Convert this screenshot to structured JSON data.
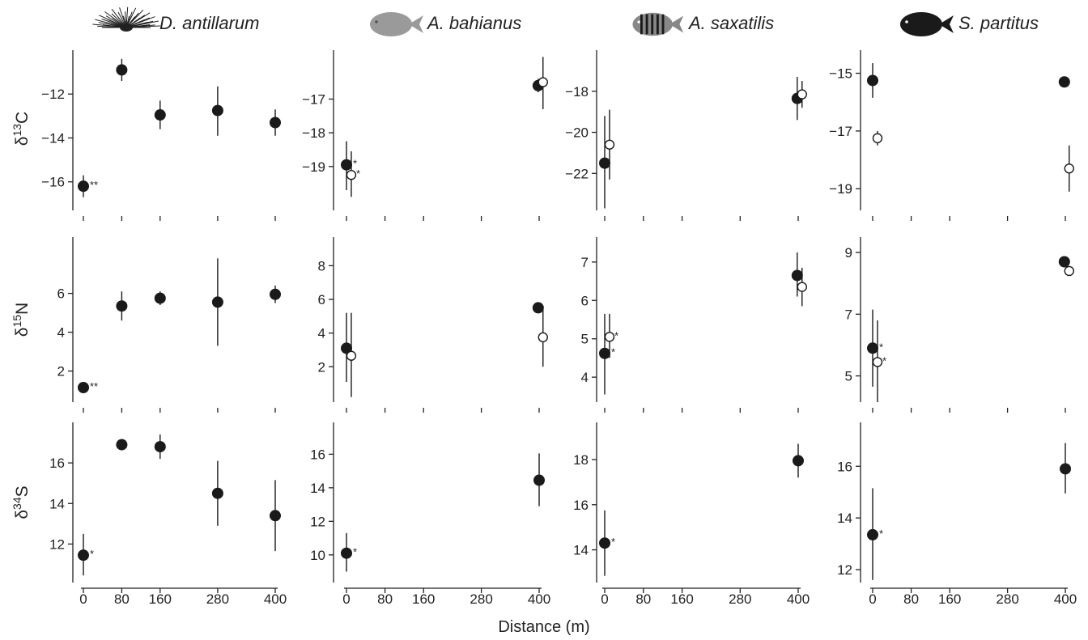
{
  "chart_data": {
    "type": "scatter",
    "x_axis": {
      "label": "Distance (m)",
      "ticks": [
        0,
        80,
        160,
        280,
        400
      ],
      "tick_labels": [
        "0",
        "80",
        "160",
        "280",
        "400"
      ]
    },
    "row_labels": [
      {
        "id": "d13c",
        "element": "δ",
        "mass": "13",
        "sym": "C"
      },
      {
        "id": "d15n",
        "element": "δ",
        "mass": "15",
        "sym": "N"
      },
      {
        "id": "d34s",
        "element": "δ",
        "mass": "34",
        "sym": "S"
      }
    ],
    "species": [
      {
        "name": "D. antillarum",
        "icon": "sea-urchin-icon",
        "icon_color": "#222222"
      },
      {
        "name": "A. bahianus",
        "icon": "surgeonfish-icon",
        "icon_color": "#9a9a9a"
      },
      {
        "name": "A. saxatilis",
        "icon": "sergeant-major-fish-icon",
        "icon_color": "#888888"
      },
      {
        "name": "S. partitus",
        "icon": "damselfish-icon",
        "icon_color": "#1a1a1a"
      }
    ],
    "marker_legend": {
      "filled": "#1a1a1a",
      "open": "#ffffff"
    },
    "panels": [
      {
        "row": 0,
        "col": 0,
        "ylim": [
          -17.3,
          -10.0
        ],
        "yticks": [
          -16,
          -14,
          -12
        ],
        "ytick_labels": [
          "−16",
          "−14",
          "−12"
        ],
        "points": [
          {
            "x": 0,
            "y": -16.2,
            "lo": -16.7,
            "hi": -15.7,
            "open": false,
            "sig": "**"
          },
          {
            "x": 80,
            "y": -10.9,
            "lo": -11.4,
            "hi": -10.4,
            "open": false,
            "sig": ""
          },
          {
            "x": 160,
            "y": -12.95,
            "lo": -13.6,
            "hi": -12.3,
            "open": false,
            "sig": ""
          },
          {
            "x": 280,
            "y": -12.75,
            "lo": -13.9,
            "hi": -11.65,
            "open": false,
            "sig": ""
          },
          {
            "x": 400,
            "y": -13.3,
            "lo": -13.9,
            "hi": -12.7,
            "open": false,
            "sig": ""
          }
        ]
      },
      {
        "row": 0,
        "col": 1,
        "ylim": [
          -20.3,
          -15.55
        ],
        "yticks": [
          -19,
          -18,
          -17
        ],
        "ytick_labels": [
          "−19",
          "−18",
          "−17"
        ],
        "points": [
          {
            "x": 0,
            "y": -18.95,
            "lo": -19.7,
            "hi": -18.25,
            "open": false,
            "sig": "*"
          },
          {
            "x": 10,
            "y": -19.25,
            "lo": -19.9,
            "hi": -18.55,
            "open": true,
            "sig": "*"
          },
          {
            "x": 398,
            "y": -16.6,
            "lo": -16.8,
            "hi": -16.4,
            "open": false,
            "sig": ""
          },
          {
            "x": 408,
            "y": -16.5,
            "lo": -17.3,
            "hi": -15.75,
            "open": true,
            "sig": ""
          }
        ]
      },
      {
        "row": 0,
        "col": 2,
        "ylim": [
          -23.8,
          -16.0
        ],
        "yticks": [
          -22,
          -20,
          -18
        ],
        "ytick_labels": [
          "−22",
          "−20",
          "−18"
        ],
        "points": [
          {
            "x": 0,
            "y": -21.5,
            "lo": -23.7,
            "hi": -19.2,
            "open": false,
            "sig": ""
          },
          {
            "x": 10,
            "y": -20.6,
            "lo": -22.3,
            "hi": -18.9,
            "open": true,
            "sig": ""
          },
          {
            "x": 398,
            "y": -18.35,
            "lo": -19.4,
            "hi": -17.3,
            "open": false,
            "sig": ""
          },
          {
            "x": 408,
            "y": -18.15,
            "lo": -18.8,
            "hi": -17.5,
            "open": true,
            "sig": ""
          }
        ]
      },
      {
        "row": 0,
        "col": 3,
        "ylim": [
          -19.75,
          -14.2
        ],
        "yticks": [
          -19,
          -17,
          -15
        ],
        "ytick_labels": [
          "−19",
          "−17",
          "−15"
        ],
        "points": [
          {
            "x": 0,
            "y": -15.25,
            "lo": -15.85,
            "hi": -14.65,
            "open": false,
            "sig": ""
          },
          {
            "x": 10,
            "y": -17.25,
            "lo": -17.5,
            "hi": -17.0,
            "open": true,
            "sig": ""
          },
          {
            "x": 398,
            "y": -15.3,
            "lo": -15.4,
            "hi": -15.2,
            "open": false,
            "sig": ""
          },
          {
            "x": 408,
            "y": -18.3,
            "lo": -19.1,
            "hi": -17.5,
            "open": true,
            "sig": ""
          }
        ]
      },
      {
        "row": 1,
        "col": 0,
        "ylim": [
          0.4,
          8.9
        ],
        "yticks": [
          2,
          4,
          6
        ],
        "ytick_labels": [
          "2",
          "4",
          "6"
        ],
        "points": [
          {
            "x": 0,
            "y": 1.15,
            "lo": 1.15,
            "hi": 1.15,
            "open": false,
            "sig": "**"
          },
          {
            "x": 80,
            "y": 5.35,
            "lo": 4.6,
            "hi": 6.1,
            "open": false,
            "sig": ""
          },
          {
            "x": 160,
            "y": 5.75,
            "lo": 5.4,
            "hi": 6.1,
            "open": false,
            "sig": ""
          },
          {
            "x": 280,
            "y": 5.55,
            "lo": 3.3,
            "hi": 7.8,
            "open": false,
            "sig": ""
          },
          {
            "x": 400,
            "y": 5.95,
            "lo": 5.5,
            "hi": 6.4,
            "open": false,
            "sig": ""
          }
        ]
      },
      {
        "row": 1,
        "col": 1,
        "ylim": [
          -0.1,
          9.7
        ],
        "yticks": [
          2,
          4,
          6,
          8
        ],
        "ytick_labels": [
          "2",
          "4",
          "6",
          "8"
        ],
        "points": [
          {
            "x": 0,
            "y": 3.1,
            "lo": 1.1,
            "hi": 5.2,
            "open": false,
            "sig": ""
          },
          {
            "x": 10,
            "y": 2.65,
            "lo": 0.2,
            "hi": 5.2,
            "open": true,
            "sig": ""
          },
          {
            "x": 398,
            "y": 5.5,
            "lo": 5.5,
            "hi": 5.5,
            "open": false,
            "sig": ""
          },
          {
            "x": 408,
            "y": 3.75,
            "lo": 2.0,
            "hi": 5.5,
            "open": true,
            "sig": ""
          }
        ]
      },
      {
        "row": 1,
        "col": 2,
        "ylim": [
          3.35,
          7.65
        ],
        "yticks": [
          4,
          5,
          6,
          7
        ],
        "ytick_labels": [
          "4",
          "5",
          "6",
          "7"
        ],
        "points": [
          {
            "x": 0,
            "y": 4.62,
            "lo": 3.55,
            "hi": 5.65,
            "open": false,
            "sig": "*"
          },
          {
            "x": 10,
            "y": 5.05,
            "lo": 4.5,
            "hi": 5.65,
            "open": true,
            "sig": "*"
          },
          {
            "x": 398,
            "y": 6.65,
            "lo": 6.1,
            "hi": 7.25,
            "open": false,
            "sig": ""
          },
          {
            "x": 408,
            "y": 6.35,
            "lo": 5.85,
            "hi": 6.85,
            "open": true,
            "sig": ""
          }
        ]
      },
      {
        "row": 1,
        "col": 3,
        "ylim": [
          4.15,
          9.5
        ],
        "yticks": [
          5,
          7,
          9
        ],
        "ytick_labels": [
          "5",
          "7",
          "9"
        ],
        "points": [
          {
            "x": 0,
            "y": 5.9,
            "lo": 4.65,
            "hi": 7.15,
            "open": false,
            "sig": "*"
          },
          {
            "x": 10,
            "y": 5.45,
            "lo": 4.15,
            "hi": 6.8,
            "open": true,
            "sig": "*"
          },
          {
            "x": 398,
            "y": 8.7,
            "lo": 8.7,
            "hi": 8.7,
            "open": false,
            "sig": ""
          },
          {
            "x": 408,
            "y": 8.4,
            "lo": 8.4,
            "hi": 8.4,
            "open": true,
            "sig": ""
          }
        ]
      },
      {
        "row": 2,
        "col": 0,
        "ylim": [
          10.1,
          18.0
        ],
        "yticks": [
          12,
          14,
          16
        ],
        "ytick_labels": [
          "12",
          "14",
          "16"
        ],
        "points": [
          {
            "x": 0,
            "y": 11.45,
            "lo": 10.45,
            "hi": 12.5,
            "open": false,
            "sig": "*"
          },
          {
            "x": 80,
            "y": 16.9,
            "lo": 16.9,
            "hi": 16.9,
            "open": false,
            "sig": ""
          },
          {
            "x": 160,
            "y": 16.8,
            "lo": 16.2,
            "hi": 17.4,
            "open": false,
            "sig": ""
          },
          {
            "x": 280,
            "y": 14.5,
            "lo": 12.9,
            "hi": 16.1,
            "open": false,
            "sig": ""
          },
          {
            "x": 400,
            "y": 13.4,
            "lo": 11.65,
            "hi": 15.15,
            "open": false,
            "sig": ""
          }
        ]
      },
      {
        "row": 2,
        "col": 1,
        "ylim": [
          8.35,
          17.9
        ],
        "yticks": [
          10,
          12,
          14,
          16
        ],
        "ytick_labels": [
          "10",
          "12",
          "14",
          "16"
        ],
        "points": [
          {
            "x": 0,
            "y": 10.1,
            "lo": 9.0,
            "hi": 11.3,
            "open": false,
            "sig": "*"
          },
          {
            "x": 400,
            "y": 14.45,
            "lo": 12.9,
            "hi": 16.05,
            "open": false,
            "sig": ""
          }
        ]
      },
      {
        "row": 2,
        "col": 2,
        "ylim": [
          12.55,
          19.65
        ],
        "yticks": [
          14,
          16,
          18
        ],
        "ytick_labels": [
          "14",
          "16",
          "18"
        ],
        "points": [
          {
            "x": 0,
            "y": 14.3,
            "lo": 12.85,
            "hi": 15.75,
            "open": false,
            "sig": "*"
          },
          {
            "x": 400,
            "y": 17.95,
            "lo": 17.2,
            "hi": 18.7,
            "open": false,
            "sig": ""
          }
        ]
      },
      {
        "row": 2,
        "col": 3,
        "ylim": [
          11.5,
          17.7
        ],
        "yticks": [
          12,
          14,
          16
        ],
        "ytick_labels": [
          "12",
          "14",
          "16"
        ],
        "points": [
          {
            "x": 0,
            "y": 13.35,
            "lo": 11.6,
            "hi": 15.15,
            "open": false,
            "sig": "*"
          },
          {
            "x": 400,
            "y": 15.9,
            "lo": 14.95,
            "hi": 16.9,
            "open": false,
            "sig": ""
          }
        ]
      }
    ]
  }
}
